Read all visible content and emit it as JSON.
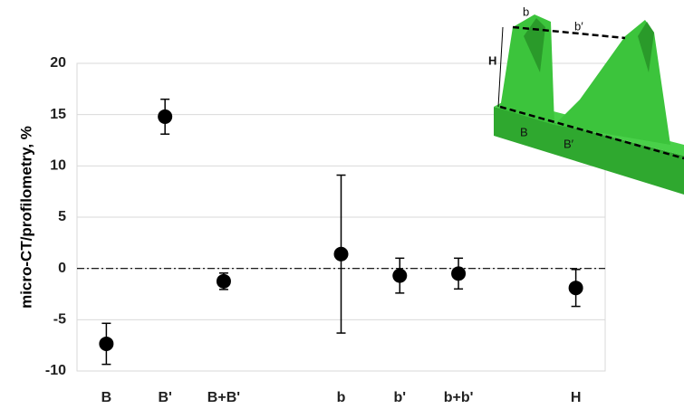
{
  "chart_data": {
    "type": "errorbar",
    "ylabel": "micro-CT/profilometry, %",
    "categories": [
      "B",
      "B'",
      "B+B'",
      null,
      "b",
      "b'",
      "b+b'",
      null,
      "H"
    ],
    "values": [
      -7.35,
      14.8,
      -1.25,
      null,
      1.4,
      -0.7,
      -0.5,
      null,
      -1.9
    ],
    "errors": [
      2.0,
      1.7,
      0.8,
      null,
      7.7,
      1.7,
      1.5,
      null,
      1.8
    ],
    "color": "#000000",
    "ylim": [
      -10,
      20
    ],
    "yticks": [
      -10,
      -5,
      0,
      5,
      10,
      15,
      20
    ],
    "grid": true,
    "reference_line": 0,
    "inset": {
      "labels": [
        "b",
        "b′",
        "H",
        "B",
        "B′"
      ]
    }
  }
}
